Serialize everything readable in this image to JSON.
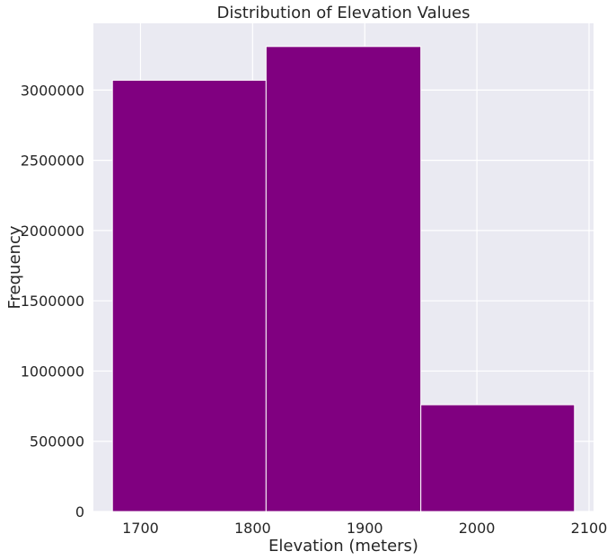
{
  "chart_data": {
    "type": "histogram",
    "title": "Distribution of Elevation Values",
    "xlabel": "Elevation (meters)",
    "ylabel": "Frequency",
    "bins": [
      {
        "x0": 1675,
        "x1": 1812,
        "value": 3070000
      },
      {
        "x0": 1812,
        "x1": 1950,
        "value": 3310000
      },
      {
        "x0": 1950,
        "x1": 2087,
        "value": 760000
      }
    ],
    "xlim": [
      1658,
      2104
    ],
    "ylim": [
      0,
      3475000
    ],
    "xticks": [
      1700,
      1800,
      1900,
      2000,
      2100
    ],
    "xtick_labels": [
      "1700",
      "1800",
      "1900",
      "2000",
      "2100"
    ],
    "yticks": [
      0,
      500000,
      1000000,
      1500000,
      2000000,
      2500000,
      3000000
    ],
    "ytick_labels": [
      "0",
      "500000",
      "1000000",
      "1500000",
      "2000000",
      "2500000",
      "3000000"
    ],
    "bar_color": "#800080",
    "background_color": "#eaeaf2",
    "grid_color": "#ffffff",
    "grid": true
  }
}
